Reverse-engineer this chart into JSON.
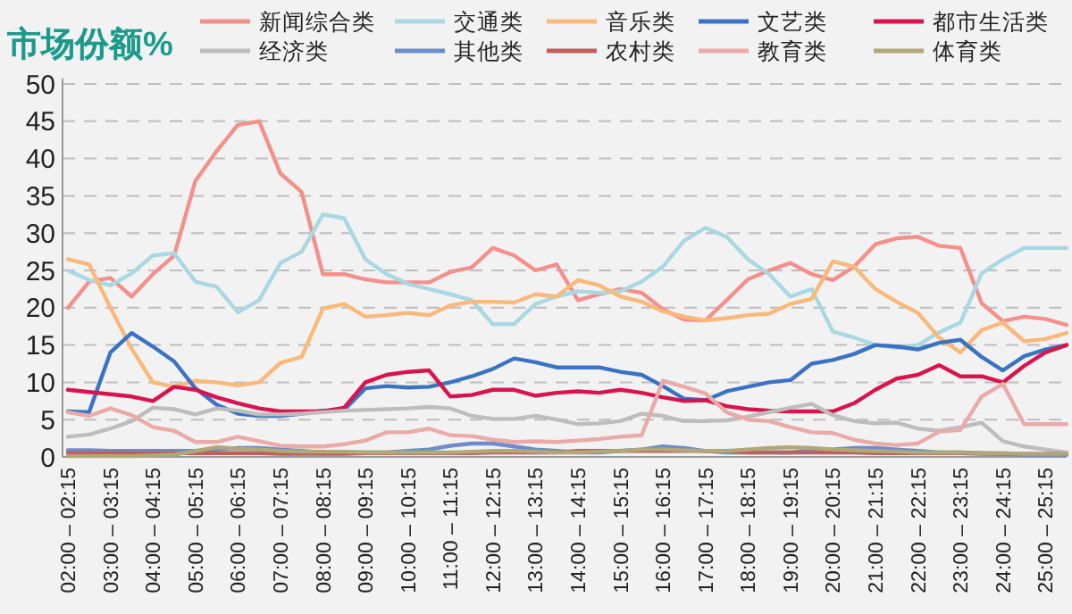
{
  "chart_data": {
    "type": "line",
    "title": "市场份额%",
    "categories": [
      "02:00 – 02:15",
      null,
      "03:00 – 03:15",
      null,
      "04:00 – 04:15",
      null,
      "05:00 – 05:15",
      null,
      "06:00 – 06:15",
      null,
      "07:00 – 07:15",
      null,
      "08:00 – 08:15",
      null,
      "09:00 – 09:15",
      null,
      "10:00 – 10:15",
      null,
      "11:00 – 11:15",
      null,
      "12:00 – 12:15",
      null,
      "13:00 – 13:15",
      null,
      "14:00 – 14:15",
      null,
      "15:00 – 15:15",
      null,
      "16:00 – 16:15",
      null,
      "17:00 – 17:15",
      null,
      "18:00 – 18:15",
      null,
      "19:00 – 19:15",
      null,
      "20:00 – 20:15",
      null,
      "21:00 – 21:15",
      null,
      "22:00 – 22:15",
      null,
      "23:00 – 23:15",
      null,
      "24:00 – 24:15",
      null,
      "25:00 – 25:15",
      null
    ],
    "series": [
      {
        "name": "新闻综合类",
        "color": "#f4908a",
        "values": [
          20,
          23.5,
          24,
          21.5,
          24.5,
          27,
          37,
          41,
          44.5,
          45,
          38,
          35.5,
          24.5,
          24.5,
          23.8,
          23.4,
          23.4,
          23.4,
          24.8,
          25.4,
          28,
          27,
          25,
          25.8,
          21,
          21.8,
          22.5,
          22,
          19.8,
          18.4,
          18.3,
          21,
          23.8,
          25,
          26,
          24.5,
          23.7,
          25.5,
          28.5,
          29.3,
          29.5,
          28.3,
          28,
          20.6,
          18.2,
          18.8,
          18.5,
          17.7
        ]
      },
      {
        "name": "交通类",
        "color": "#a9d8e2",
        "values": [
          25,
          23.7,
          23,
          24.6,
          27,
          27.3,
          23.5,
          22.8,
          19.4,
          21,
          26,
          27.5,
          32.5,
          32,
          26.5,
          24.5,
          23.2,
          22.5,
          21.8,
          21,
          17.8,
          17.8,
          20.5,
          21.5,
          22.2,
          22,
          22.2,
          23.5,
          25.5,
          29,
          30.7,
          29.5,
          26.5,
          24.5,
          21.5,
          22.5,
          16.8,
          16,
          15,
          14.6,
          15,
          16.7,
          18,
          24.6,
          26.5,
          28,
          28,
          28
        ]
      },
      {
        "name": "音乐类",
        "color": "#f9b97a",
        "values": [
          26.5,
          25.8,
          20,
          14.5,
          10,
          9.4,
          10.2,
          10,
          9.6,
          10,
          12.6,
          13.4,
          19.9,
          20.5,
          18.8,
          19,
          19.3,
          19,
          20.3,
          20.8,
          20.8,
          20.7,
          21.8,
          21.5,
          23.7,
          23,
          21.5,
          20.8,
          19.5,
          18.8,
          18.3,
          18.6,
          19,
          19.2,
          20.5,
          21.2,
          26.2,
          25.5,
          22.5,
          20.8,
          19.3,
          16,
          14,
          17,
          18,
          15.5,
          15.8,
          16.6
        ]
      },
      {
        "name": "文艺类",
        "color": "#3b73c4",
        "values": [
          6.1,
          6,
          14,
          16.6,
          14.8,
          12.8,
          9.2,
          7,
          5.8,
          5.5,
          5.5,
          5.8,
          6.2,
          6.3,
          9.2,
          9.5,
          9.3,
          9.4,
          10,
          10.8,
          11.8,
          13.2,
          12.7,
          12,
          12,
          12,
          11.4,
          11,
          9.5,
          7.8,
          7.6,
          8.8,
          9.4,
          10,
          10.3,
          12.5,
          13,
          13.8,
          15,
          14.8,
          14.4,
          15.3,
          15.7,
          13.4,
          11.6,
          13.5,
          14.4,
          15
        ]
      },
      {
        "name": "都市生活类",
        "color": "#d9134e",
        "values": [
          9,
          8.7,
          8.4,
          8.1,
          7.5,
          9.4,
          9,
          8,
          7.2,
          6.5,
          6.1,
          6.1,
          6.1,
          6.6,
          10,
          11,
          11.4,
          11.6,
          8.1,
          8.3,
          9,
          9,
          8.2,
          8.6,
          8.8,
          8.6,
          9,
          8.6,
          8,
          7.5,
          7.6,
          6.8,
          6.4,
          6.2,
          6.1,
          6.1,
          6.1,
          7.2,
          9,
          10.5,
          11,
          12.3,
          10.8,
          10.8,
          10,
          12.2,
          14,
          15
        ]
      },
      {
        "name": "经济类",
        "color": "#bdbdbd",
        "values": [
          2.7,
          3,
          3.8,
          4.8,
          6.6,
          6.4,
          5.7,
          6.5,
          6.2,
          5.7,
          5.7,
          5.8,
          6,
          6.2,
          6.3,
          6.4,
          6.5,
          6.7,
          6.5,
          5.5,
          5.1,
          5.1,
          5.5,
          5,
          4.4,
          4.5,
          4.8,
          5.8,
          5.5,
          4.8,
          4.8,
          4.9,
          5.4,
          6,
          6.6,
          7.1,
          5.6,
          4.8,
          4.5,
          4.6,
          3.8,
          3.5,
          4,
          4.6,
          2.1,
          1.4,
          1,
          0.6
        ]
      },
      {
        "name": "其他类",
        "color": "#6d8cc9",
        "values": [
          0.9,
          0.9,
          0.8,
          0.8,
          0.8,
          0.8,
          0.8,
          1.0,
          1.2,
          1.2,
          1.0,
          0.8,
          0.6,
          0.6,
          0.6,
          0.6,
          0.8,
          1.0,
          1.5,
          1.8,
          1.8,
          1.4,
          1.0,
          0.8,
          0.6,
          0.6,
          0.8,
          1.0,
          1.4,
          1.2,
          0.8,
          0.6,
          0.6,
          0.6,
          0.6,
          0.8,
          1.0,
          1.2,
          1.2,
          1.0,
          0.8,
          0.6,
          0.6,
          0.5,
          0.4,
          0.3,
          0.3,
          0.3
        ]
      },
      {
        "name": "农村类",
        "color": "#c0605e",
        "values": [
          0.5,
          0.5,
          0.5,
          0.5,
          0.5,
          0.5,
          0.5,
          0.5,
          0.5,
          0.5,
          0.4,
          0.4,
          0.4,
          0.4,
          0.5,
          0.5,
          0.5,
          0.5,
          0.5,
          0.5,
          0.6,
          0.6,
          0.6,
          0.6,
          0.8,
          0.8,
          0.8,
          0.8,
          0.8,
          0.8,
          0.8,
          0.8,
          0.6,
          0.6,
          0.6,
          0.6,
          0.6,
          0.6,
          0.5,
          0.5,
          0.5,
          0.5,
          0.5,
          0.4,
          0.4,
          0.4,
          0.4,
          0.4
        ]
      },
      {
        "name": "教育类",
        "color": "#eaaaa8",
        "values": [
          6,
          5.5,
          6.5,
          5.6,
          4,
          3.5,
          2,
          2,
          2.7,
          2.1,
          1.5,
          1.4,
          1.4,
          1.7,
          2.2,
          3.3,
          3.3,
          3.8,
          2.9,
          2.8,
          2.3,
          2,
          2.1,
          2,
          2.2,
          2.4,
          2.7,
          2.9,
          10.2,
          9.4,
          8.5,
          6,
          5,
          4.8,
          4,
          3.3,
          3.2,
          2.3,
          1.8,
          1.6,
          1.8,
          3.4,
          3.6,
          8.1,
          9.8,
          4.4,
          4.4,
          4.4
        ]
      },
      {
        "name": "体育类",
        "color": "#b0a878",
        "values": [
          0.1,
          0.1,
          0.1,
          0.1,
          0.2,
          0.3,
          0.8,
          1.3,
          1.1,
          1.0,
          0.8,
          0.7,
          0.7,
          0.7,
          0.6,
          0.6,
          0.6,
          0.6,
          0.6,
          0.7,
          0.8,
          0.8,
          0.7,
          0.6,
          0.6,
          0.7,
          0.8,
          1.0,
          1.0,
          0.9,
          0.8,
          0.8,
          1.0,
          1.2,
          1.3,
          1.2,
          1.0,
          0.9,
          0.8,
          0.7,
          0.6,
          0.6,
          0.6,
          0.5,
          0.5,
          0.4,
          0.4,
          0.4
        ]
      }
    ],
    "ylim": [
      0,
      50
    ],
    "yticks": [
      0,
      5,
      10,
      15,
      20,
      25,
      30,
      35,
      40,
      45,
      50
    ],
    "grid": "y",
    "legend": "top",
    "line_style": "solid"
  }
}
